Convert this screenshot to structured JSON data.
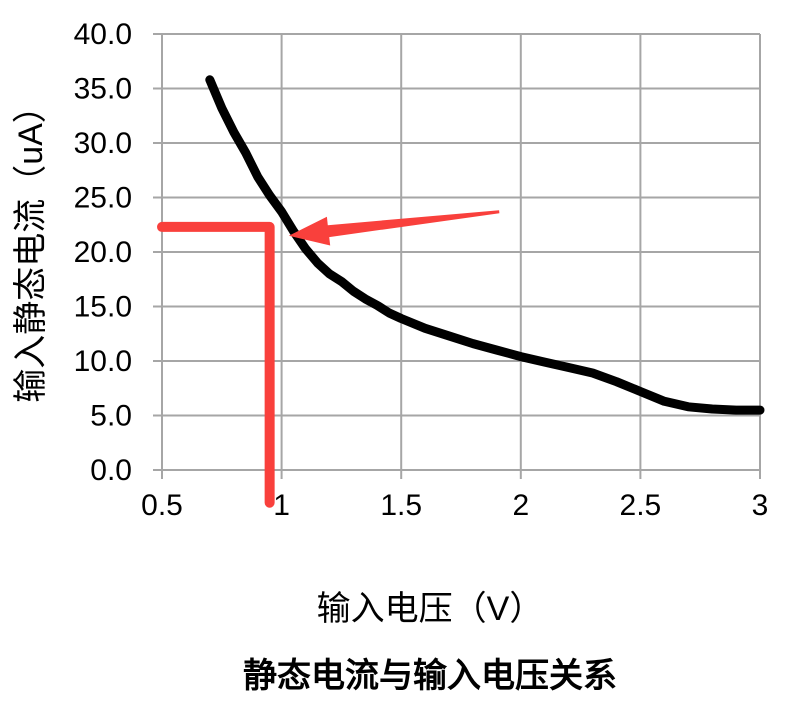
{
  "chart_data": {
    "type": "line",
    "title": "静态电流与输入电压关系",
    "xlabel": "输入电压（V）",
    "ylabel": "输入静态电流（uA）",
    "xlim": [
      0.5,
      3.0
    ],
    "ylim": [
      0.0,
      40.0
    ],
    "grid": true,
    "legend_position": "none",
    "x_ticks": [
      0.5,
      1,
      1.5,
      2,
      2.5,
      3
    ],
    "x_tick_labels": [
      "0.5",
      "1",
      "1.5",
      "2",
      "2.5",
      "3"
    ],
    "y_ticks": [
      0,
      5,
      10,
      15,
      20,
      25,
      30,
      35,
      40
    ],
    "y_tick_labels": [
      "0.0",
      "5.0",
      "10.0",
      "15.0",
      "20.0",
      "25.0",
      "30.0",
      "35.0",
      "40.0"
    ],
    "series": [
      {
        "name": "输入静态电流",
        "color": "#000000",
        "width": 9,
        "points": [
          [
            0.7,
            35.8
          ],
          [
            0.75,
            33.2
          ],
          [
            0.8,
            31.0
          ],
          [
            0.85,
            29.1
          ],
          [
            0.9,
            26.9
          ],
          [
            0.95,
            25.2
          ],
          [
            1.0,
            23.7
          ],
          [
            1.05,
            21.9
          ],
          [
            1.1,
            20.3
          ],
          [
            1.15,
            19.0
          ],
          [
            1.2,
            18.0
          ],
          [
            1.25,
            17.3
          ],
          [
            1.3,
            16.4
          ],
          [
            1.35,
            15.7
          ],
          [
            1.4,
            15.1
          ],
          [
            1.45,
            14.4
          ],
          [
            1.5,
            13.9
          ],
          [
            1.6,
            13.0
          ],
          [
            1.7,
            12.3
          ],
          [
            1.8,
            11.6
          ],
          [
            1.9,
            11.0
          ],
          [
            2.0,
            10.4
          ],
          [
            2.1,
            9.9
          ],
          [
            2.2,
            9.4
          ],
          [
            2.3,
            8.9
          ],
          [
            2.4,
            8.1
          ],
          [
            2.5,
            7.2
          ],
          [
            2.6,
            6.3
          ],
          [
            2.7,
            5.8
          ],
          [
            2.8,
            5.6
          ],
          [
            2.9,
            5.5
          ],
          [
            3.0,
            5.5
          ]
        ]
      }
    ],
    "annotation": {
      "color": "#F9403C",
      "line_width": 10,
      "hline": {
        "y": 22.3,
        "x_from": 0.5,
        "x_to": 0.95
      },
      "vline": {
        "x": 0.95,
        "y_from": 22.3,
        "y_to": -3.0
      },
      "arrow": {
        "tail": [
          1.91,
          23.7
        ],
        "tip": [
          1.03,
          21.5
        ]
      }
    },
    "colors": {
      "grid": "#A6A6A6",
      "axis": "#A6A6A6",
      "curve": "#000000",
      "annotation": "#F9403C",
      "text": "#000000",
      "background": "#FFFFFF"
    }
  }
}
